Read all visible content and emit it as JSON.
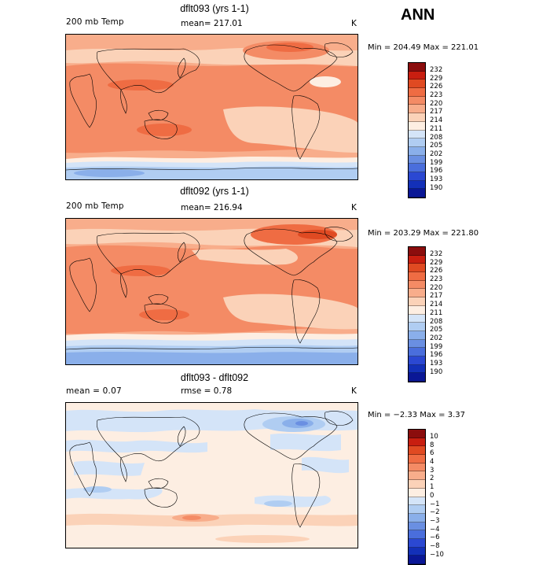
{
  "figure_title": "ANN",
  "panels": [
    {
      "title": "dflt093 (yrs 1-1)",
      "left_label": "200 mb Temp",
      "center_label": "mean= 217.01",
      "unit": "K",
      "minmax": "Min = 204.49 Max = 221.01",
      "colorbar": {
        "labels": [
          "232",
          "229",
          "226",
          "223",
          "220",
          "217",
          "214",
          "211",
          "208",
          "205",
          "202",
          "199",
          "196",
          "193",
          "190"
        ],
        "colors": [
          "#8b0d0d",
          "#c81e10",
          "#e04a22",
          "#ef6c43",
          "#f48b65",
          "#f8ad8b",
          "#fbd2b8",
          "#fdeee2",
          "#d4e4f8",
          "#b0cdf2",
          "#8aafea",
          "#6a8fe2",
          "#4a6edc",
          "#2b48d2",
          "#1330b8",
          "#0a1796"
        ]
      }
    },
    {
      "title": "dflt092 (yrs 1-1)",
      "left_label": "200 mb Temp",
      "center_label": "mean= 216.94",
      "unit": "K",
      "minmax": "Min = 203.29 Max = 221.80",
      "colorbar": {
        "labels": [
          "232",
          "229",
          "226",
          "223",
          "220",
          "217",
          "214",
          "211",
          "208",
          "205",
          "202",
          "199",
          "196",
          "193",
          "190"
        ],
        "colors": [
          "#8b0d0d",
          "#c81e10",
          "#e04a22",
          "#ef6c43",
          "#f48b65",
          "#f8ad8b",
          "#fbd2b8",
          "#fdeee2",
          "#d4e4f8",
          "#b0cdf2",
          "#8aafea",
          "#6a8fe2",
          "#4a6edc",
          "#2b48d2",
          "#1330b8",
          "#0a1796"
        ]
      }
    },
    {
      "title": "dflt093 - dflt092",
      "left_label": "mean =   0.07",
      "center_label": "rmse =   0.78",
      "unit": "K",
      "minmax": "Min =  −2.33 Max =   3.37",
      "colorbar": {
        "labels": [
          "10",
          "8",
          "6",
          "4",
          "3",
          "2",
          "1",
          "0",
          "−1",
          "−2",
          "−3",
          "−4",
          "−6",
          "−8",
          "−10"
        ],
        "colors": [
          "#8b0d0d",
          "#c81e10",
          "#e04a22",
          "#ef6c43",
          "#f48b65",
          "#f8ad8b",
          "#fbd2b8",
          "#fdeee2",
          "#d4e4f8",
          "#b0cdf2",
          "#8aafea",
          "#6a8fe2",
          "#4a6edc",
          "#2b48d2",
          "#1330b8",
          "#0a1796"
        ]
      }
    }
  ]
}
